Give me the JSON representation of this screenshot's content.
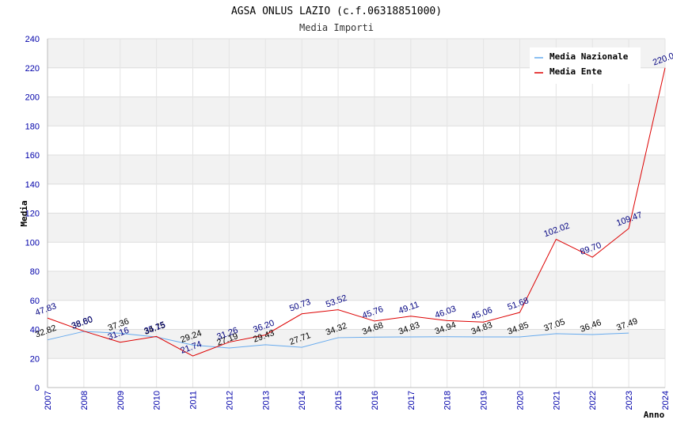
{
  "chart_data": {
    "type": "line",
    "title": "AGSA ONLUS LAZIO (c.f.06318851000)",
    "subtitle": "Media Importi",
    "ylabel": "Media",
    "xlabel": "Anno",
    "ylim": [
      0,
      240
    ],
    "yticks": [
      "0",
      "20",
      "40",
      "60",
      "80",
      "100",
      "120",
      "140",
      "160",
      "180",
      "200",
      "220",
      "240"
    ],
    "categories": [
      "2007",
      "2008",
      "2009",
      "2010",
      "2011",
      "2012",
      "2013",
      "2014",
      "2015",
      "2016",
      "2017",
      "2018",
      "2019",
      "2020",
      "2021",
      "2022",
      "2023",
      "2024"
    ],
    "series": [
      {
        "name": "Media Nazionale",
        "color": "#66aaee",
        "label_color": "#000000",
        "values": [
          32.82,
          38.6,
          37.36,
          34.75,
          29.24,
          27.19,
          29.43,
          27.71,
          34.32,
          34.68,
          34.83,
          34.94,
          34.83,
          34.85,
          37.05,
          36.46,
          37.49,
          null
        ],
        "labels": [
          "32.82",
          "38.60",
          "37.36",
          "34.75",
          "29.24",
          "27.19",
          "29.43",
          "27.71",
          "34.32",
          "34.68",
          "34.83",
          "34.94",
          "34.83",
          "34.85",
          "37.05",
          "36.46",
          "37.49",
          ""
        ]
      },
      {
        "name": "Media Ente",
        "color": "#dd0000",
        "label_color": "#000080",
        "values": [
          47.83,
          38.8,
          31.16,
          35.15,
          21.74,
          31.26,
          36.2,
          50.73,
          53.52,
          45.76,
          49.11,
          46.03,
          45.06,
          51.68,
          102.02,
          89.7,
          109.47,
          220.0
        ],
        "labels": [
          "47.83",
          "38.80",
          "31.16",
          "35.15",
          "21.74",
          "31.26",
          "36.20",
          "50.73",
          "53.52",
          "45.76",
          "49.11",
          "46.03",
          "45.06",
          "51.68",
          "102.02",
          "89.70",
          "109.47",
          "220.00"
        ]
      }
    ],
    "legend_position": "top-right",
    "grid": true
  }
}
